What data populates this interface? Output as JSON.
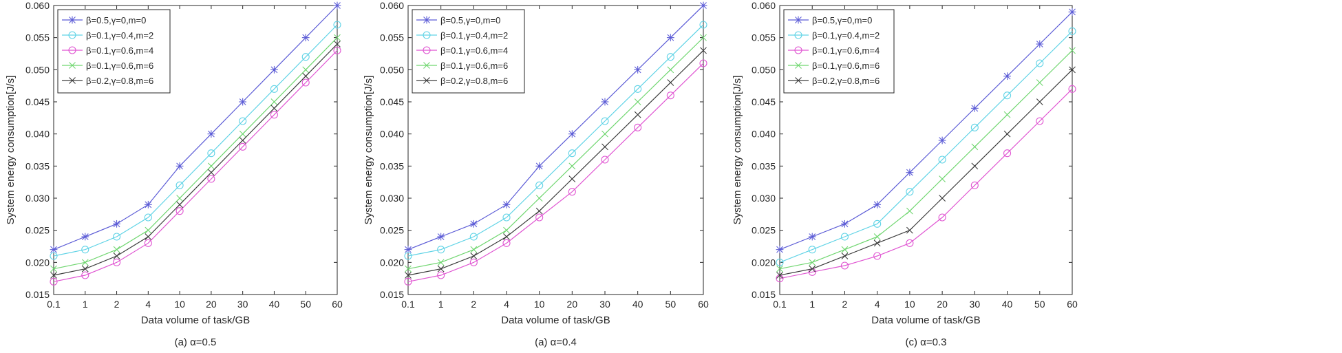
{
  "figure": {
    "panel_order": [
      "(a) α=0.5",
      "(a) α=0.4",
      "(c) α=0.3"
    ]
  },
  "colors": {
    "series": [
      "#5b5bd6",
      "#5fd3e6",
      "#e055d2",
      "#6fd66f",
      "#3a3a3a"
    ],
    "axis": "#262626",
    "legend_border": "#262626"
  },
  "chart_data": [
    {
      "type": "line",
      "caption": "(a) α=0.5",
      "xlabel": "Data volume of task/GB",
      "ylabel": "System energy consumption[J/s]",
      "categories": [
        "0.1",
        "1",
        "2",
        "4",
        "10",
        "20",
        "30",
        "40",
        "50",
        "60"
      ],
      "ylim": [
        0.015,
        0.06
      ],
      "yticks": [
        "0.015",
        "0.020",
        "0.025",
        "0.030",
        "0.035",
        "0.040",
        "0.045",
        "0.050",
        "0.055",
        "0.060"
      ],
      "grid": false,
      "legend_position": "top-left",
      "series": [
        {
          "name": "β=0.5,γ=0,m=0",
          "marker": "asterisk",
          "values": [
            0.022,
            0.024,
            0.026,
            0.029,
            0.035,
            0.04,
            0.045,
            0.05,
            0.055,
            0.06
          ]
        },
        {
          "name": "β=0.1,γ=0.4,m=2",
          "marker": "circle",
          "values": [
            0.021,
            0.022,
            0.024,
            0.027,
            0.032,
            0.037,
            0.042,
            0.047,
            0.052,
            0.057
          ]
        },
        {
          "name": "β=0.1,γ=0.6,m=4",
          "marker": "circle",
          "values": [
            0.017,
            0.018,
            0.02,
            0.023,
            0.028,
            0.033,
            0.038,
            0.043,
            0.048,
            0.053
          ]
        },
        {
          "name": "β=0.1,γ=0.6,m=6",
          "marker": "x",
          "values": [
            0.019,
            0.02,
            0.022,
            0.025,
            0.03,
            0.035,
            0.04,
            0.045,
            0.05,
            0.055
          ]
        },
        {
          "name": "β=0.2,γ=0.8,m=6",
          "marker": "x",
          "values": [
            0.018,
            0.019,
            0.021,
            0.024,
            0.029,
            0.034,
            0.039,
            0.044,
            0.049,
            0.054
          ]
        }
      ]
    },
    {
      "type": "line",
      "caption": "(a) α=0.4",
      "xlabel": "Data volume of task/GB",
      "ylabel": "System energy consumption[J/s]",
      "categories": [
        "0.1",
        "1",
        "2",
        "4",
        "10",
        "20",
        "30",
        "40",
        "50",
        "60"
      ],
      "ylim": [
        0.015,
        0.06
      ],
      "yticks": [
        "0.015",
        "0.020",
        "0.025",
        "0.030",
        "0.035",
        "0.040",
        "0.045",
        "0.050",
        "0.055",
        "0.060"
      ],
      "grid": false,
      "legend_position": "top-left",
      "series": [
        {
          "name": "β=0.5,γ=0,m=0",
          "marker": "asterisk",
          "values": [
            0.022,
            0.024,
            0.026,
            0.029,
            0.035,
            0.04,
            0.045,
            0.05,
            0.055,
            0.06
          ]
        },
        {
          "name": "β=0.1,γ=0.4,m=2",
          "marker": "circle",
          "values": [
            0.021,
            0.022,
            0.024,
            0.027,
            0.032,
            0.037,
            0.042,
            0.047,
            0.052,
            0.057
          ]
        },
        {
          "name": "β=0.1,γ=0.6,m=4",
          "marker": "circle",
          "values": [
            0.017,
            0.018,
            0.02,
            0.023,
            0.027,
            0.031,
            0.036,
            0.041,
            0.046,
            0.051
          ]
        },
        {
          "name": "β=0.1,γ=0.6,m=6",
          "marker": "x",
          "values": [
            0.019,
            0.02,
            0.022,
            0.025,
            0.03,
            0.035,
            0.04,
            0.045,
            0.05,
            0.055
          ]
        },
        {
          "name": "β=0.2,γ=0.8,m=6",
          "marker": "x",
          "values": [
            0.018,
            0.019,
            0.021,
            0.024,
            0.028,
            0.033,
            0.038,
            0.043,
            0.048,
            0.053
          ]
        }
      ]
    },
    {
      "type": "line",
      "caption": "(c) α=0.3",
      "xlabel": "Data volume of task/GB",
      "ylabel": "System energy consumption[J/s]",
      "categories": [
        "0.1",
        "1",
        "2",
        "4",
        "10",
        "20",
        "30",
        "40",
        "50",
        "60"
      ],
      "ylim": [
        0.015,
        0.06
      ],
      "yticks": [
        "0.015",
        "0.020",
        "0.025",
        "0.030",
        "0.035",
        "0.040",
        "0.045",
        "0.050",
        "0.055",
        "0.060"
      ],
      "grid": false,
      "legend_position": "top-left",
      "series": [
        {
          "name": "β=0.5,γ=0,m=0",
          "marker": "asterisk",
          "values": [
            0.022,
            0.024,
            0.026,
            0.029,
            0.034,
            0.039,
            0.044,
            0.049,
            0.054,
            0.059
          ]
        },
        {
          "name": "β=0.1,γ=0.4,m=2",
          "marker": "circle",
          "values": [
            0.02,
            0.022,
            0.024,
            0.026,
            0.031,
            0.036,
            0.041,
            0.046,
            0.051,
            0.056
          ]
        },
        {
          "name": "β=0.1,γ=0.6,m=4",
          "marker": "circle",
          "values": [
            0.0175,
            0.0185,
            0.0195,
            0.021,
            0.023,
            0.027,
            0.032,
            0.037,
            0.042,
            0.047
          ]
        },
        {
          "name": "β=0.1,γ=0.6,m=6",
          "marker": "x",
          "values": [
            0.019,
            0.02,
            0.022,
            0.024,
            0.028,
            0.033,
            0.038,
            0.043,
            0.048,
            0.053
          ]
        },
        {
          "name": "β=0.2,γ=0.8,m=6",
          "marker": "x",
          "values": [
            0.018,
            0.019,
            0.021,
            0.023,
            0.025,
            0.03,
            0.035,
            0.04,
            0.045,
            0.05
          ]
        }
      ]
    }
  ]
}
